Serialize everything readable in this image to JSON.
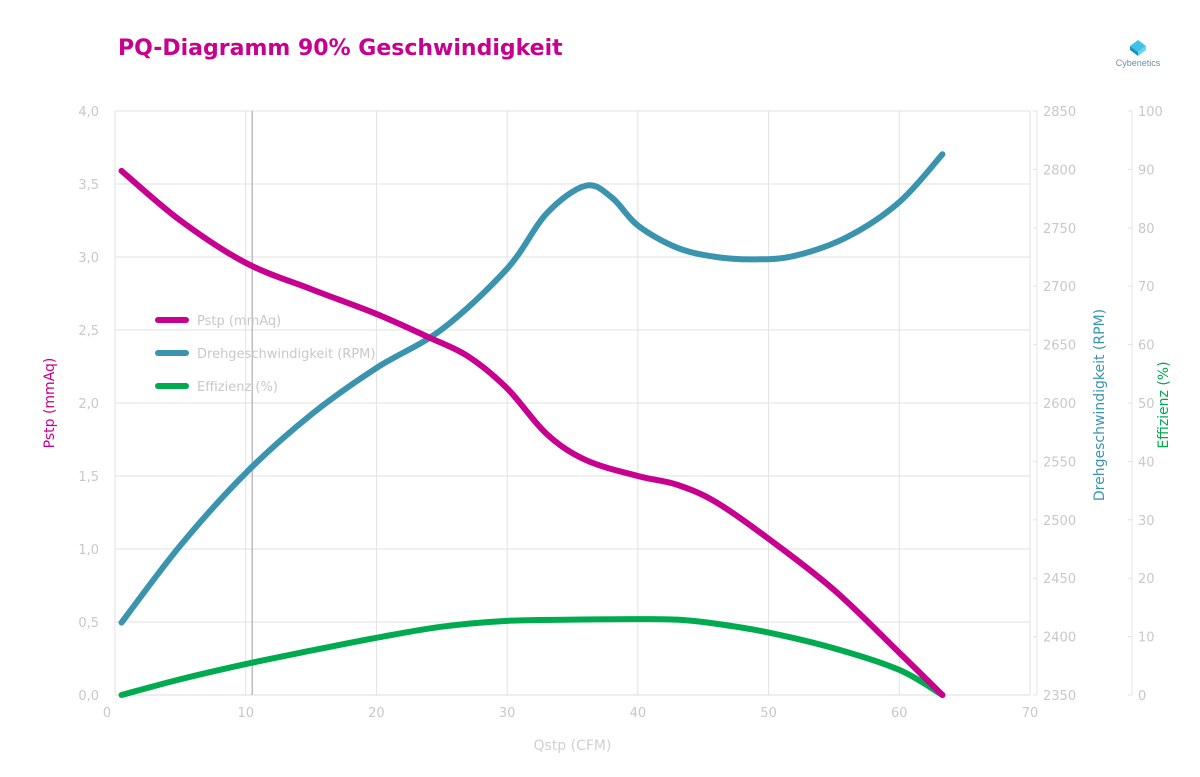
{
  "title": "PQ-Diagramm 90% Geschwindigkeit",
  "brand": {
    "name": "Cybenetics",
    "icon": "cube-logo-icon"
  },
  "chart_data": {
    "type": "line",
    "title": "PQ-Diagramm 90% Geschwindigkeit",
    "xlabel": "Qstp (CFM)",
    "xlim": [
      0,
      70
    ],
    "x_ticks": [
      "0",
      "10",
      "20",
      "30",
      "40",
      "50",
      "60",
      "70"
    ],
    "axes": {
      "left": {
        "label": "Pstp (mmAq)",
        "lim": [
          0,
          4
        ],
        "ticks": [
          "0,0",
          "0,5",
          "1,0",
          "1,5",
          "2,0",
          "2,5",
          "3,0",
          "3,5",
          "4,0"
        ],
        "color": "#c8008f"
      },
      "right1": {
        "label": "Drehgeschwindigkeit (RPM)",
        "lim": [
          2350,
          2850
        ],
        "ticks": [
          "2350",
          "2400",
          "2450",
          "2500",
          "2550",
          "2600",
          "2650",
          "2700",
          "2750",
          "2800",
          "2850"
        ],
        "color": "#3a94ae"
      },
      "right2": {
        "label": "Effizienz (%)",
        "lim": [
          0,
          100
        ],
        "ticks": [
          "0",
          "10",
          "20",
          "30",
          "40",
          "50",
          "60",
          "70",
          "80",
          "90",
          "100"
        ],
        "color": "#00aa4f"
      }
    },
    "grid": true,
    "legend_position": "left",
    "series": [
      {
        "name": "Pstp (mmAq)",
        "axis": "left",
        "color": "#c8008f",
        "x": [
          0.5,
          5,
          10,
          15,
          20,
          24,
          27,
          30,
          33,
          36,
          40,
          43,
          46,
          50,
          55,
          60,
          63.3
        ],
        "values": [
          3.59,
          3.25,
          2.96,
          2.78,
          2.61,
          2.45,
          2.32,
          2.1,
          1.79,
          1.61,
          1.5,
          1.44,
          1.32,
          1.07,
          0.72,
          0.29,
          0.0
        ]
      },
      {
        "name": "Drehgeschwindigkeit (RPM)",
        "axis": "right1",
        "color": "#3a94ae",
        "x": [
          0.5,
          5,
          10,
          15,
          20,
          25,
          30,
          33,
          36,
          38,
          40,
          43,
          46,
          49,
          52,
          56,
          60,
          63.3
        ],
        "values": [
          2412,
          2478,
          2540,
          2590,
          2630,
          2663,
          2715,
          2762,
          2786,
          2776,
          2752,
          2733,
          2725,
          2723,
          2726,
          2742,
          2772,
          2813
        ]
      },
      {
        "name": "Effizienz (%)",
        "axis": "right2",
        "color": "#00aa4f",
        "x": [
          0.5,
          5,
          10,
          15,
          20,
          25,
          30,
          35,
          40,
          43,
          46,
          50,
          55,
          60,
          63.3
        ],
        "values": [
          0,
          2.7,
          5.3,
          7.6,
          9.8,
          11.7,
          12.7,
          12.9,
          13.0,
          12.9,
          12.2,
          10.7,
          8.0,
          4.3,
          0
        ]
      }
    ]
  }
}
